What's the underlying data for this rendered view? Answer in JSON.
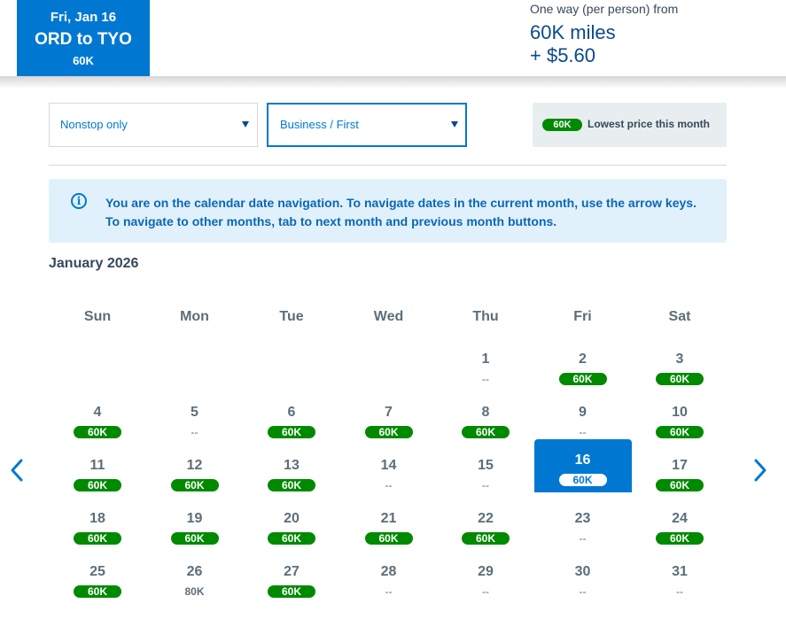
{
  "header": {
    "date_tab": {
      "date": "Fri, Jan 16",
      "route": "ORD to TYO",
      "price": "60K"
    },
    "fare": {
      "label": "One way (per person) from",
      "miles": "60K miles",
      "tax": "+ $5.60"
    }
  },
  "filters": {
    "stops": {
      "value": "Nonstop only"
    },
    "cabin": {
      "value": "Business / First"
    },
    "legend": {
      "pill": "60K",
      "text": "Lowest price this month"
    }
  },
  "info": {
    "icon": "info-icon",
    "text": "You are on the calendar date navigation. To navigate dates in the current month, use the arrow keys. To navigate to other months, tab to next month and previous month buttons."
  },
  "calendar": {
    "month_title": "January 2026",
    "weekdays": [
      "Sun",
      "Mon",
      "Tue",
      "Wed",
      "Thu",
      "Fri",
      "Sat"
    ],
    "selected_day": "16",
    "days": [
      {
        "day": "1",
        "price": "--",
        "type": "none",
        "col": 4,
        "row": 0
      },
      {
        "day": "2",
        "price": "60K",
        "type": "low",
        "col": 5,
        "row": 0
      },
      {
        "day": "3",
        "price": "60K",
        "type": "low",
        "col": 6,
        "row": 0
      },
      {
        "day": "4",
        "price": "60K",
        "type": "low",
        "col": 0,
        "row": 1
      },
      {
        "day": "5",
        "price": "--",
        "type": "none",
        "col": 1,
        "row": 1
      },
      {
        "day": "6",
        "price": "60K",
        "type": "low",
        "col": 2,
        "row": 1
      },
      {
        "day": "7",
        "price": "60K",
        "type": "low",
        "col": 3,
        "row": 1
      },
      {
        "day": "8",
        "price": "60K",
        "type": "low",
        "col": 4,
        "row": 1
      },
      {
        "day": "9",
        "price": "--",
        "type": "none",
        "col": 5,
        "row": 1
      },
      {
        "day": "10",
        "price": "60K",
        "type": "low",
        "col": 6,
        "row": 1
      },
      {
        "day": "11",
        "price": "60K",
        "type": "low",
        "col": 0,
        "row": 2
      },
      {
        "day": "12",
        "price": "60K",
        "type": "low",
        "col": 1,
        "row": 2
      },
      {
        "day": "13",
        "price": "60K",
        "type": "low",
        "col": 2,
        "row": 2
      },
      {
        "day": "14",
        "price": "--",
        "type": "none",
        "col": 3,
        "row": 2
      },
      {
        "day": "15",
        "price": "--",
        "type": "none",
        "col": 4,
        "row": 2
      },
      {
        "day": "16",
        "price": "60K",
        "type": "low",
        "col": 5,
        "row": 2
      },
      {
        "day": "17",
        "price": "60K",
        "type": "low",
        "col": 6,
        "row": 2
      },
      {
        "day": "18",
        "price": "60K",
        "type": "low",
        "col": 0,
        "row": 3
      },
      {
        "day": "19",
        "price": "60K",
        "type": "low",
        "col": 1,
        "row": 3
      },
      {
        "day": "20",
        "price": "60K",
        "type": "low",
        "col": 2,
        "row": 3
      },
      {
        "day": "21",
        "price": "60K",
        "type": "low",
        "col": 3,
        "row": 3
      },
      {
        "day": "22",
        "price": "60K",
        "type": "low",
        "col": 4,
        "row": 3
      },
      {
        "day": "23",
        "price": "--",
        "type": "none",
        "col": 5,
        "row": 3
      },
      {
        "day": "24",
        "price": "60K",
        "type": "low",
        "col": 6,
        "row": 3
      },
      {
        "day": "25",
        "price": "60K",
        "type": "low",
        "col": 0,
        "row": 4
      },
      {
        "day": "26",
        "price": "80K",
        "type": "plain",
        "col": 1,
        "row": 4
      },
      {
        "day": "27",
        "price": "60K",
        "type": "low",
        "col": 2,
        "row": 4
      },
      {
        "day": "28",
        "price": "--",
        "type": "none",
        "col": 3,
        "row": 4
      },
      {
        "day": "29",
        "price": "--",
        "type": "none",
        "col": 4,
        "row": 4
      },
      {
        "day": "30",
        "price": "--",
        "type": "none",
        "col": 5,
        "row": 4
      },
      {
        "day": "31",
        "price": "--",
        "type": "none",
        "col": 6,
        "row": 4
      }
    ],
    "prev_icon": "chevron-left-icon",
    "next_icon": "chevron-right-icon"
  },
  "colors": {
    "accent": "#0078d2",
    "low_price": "#008a00",
    "info_bg": "#e1f1fb"
  }
}
